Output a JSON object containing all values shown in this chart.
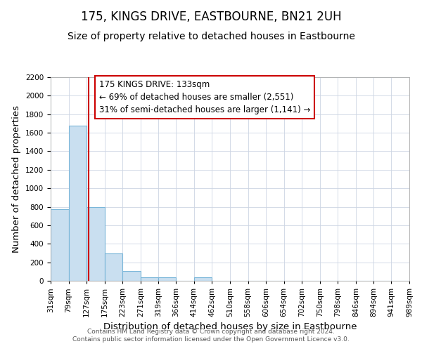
{
  "title": "175, KINGS DRIVE, EASTBOURNE, BN21 2UH",
  "subtitle": "Size of property relative to detached houses in Eastbourne",
  "xlabel": "Distribution of detached houses by size in Eastbourne",
  "ylabel": "Number of detached properties",
  "footer_line1": "Contains HM Land Registry data © Crown copyright and database right 2024.",
  "footer_line2": "Contains public sector information licensed under the Open Government Licence v3.0.",
  "bin_labels": [
    "31sqm",
    "79sqm",
    "127sqm",
    "175sqm",
    "223sqm",
    "271sqm",
    "319sqm",
    "366sqm",
    "414sqm",
    "462sqm",
    "510sqm",
    "558sqm",
    "606sqm",
    "654sqm",
    "702sqm",
    "750sqm",
    "798sqm",
    "846sqm",
    "894sqm",
    "941sqm",
    "989sqm"
  ],
  "bin_edges": [
    31,
    79,
    127,
    175,
    223,
    271,
    319,
    366,
    414,
    462,
    510,
    558,
    606,
    654,
    702,
    750,
    798,
    846,
    894,
    941,
    989
  ],
  "bar_values": [
    775,
    1675,
    800,
    295,
    110,
    35,
    35,
    0,
    35,
    0,
    0,
    0,
    0,
    0,
    0,
    0,
    0,
    0,
    0,
    0
  ],
  "bar_color": "#c9dff0",
  "bar_edge_color": "#7ab6d9",
  "ylim": [
    0,
    2200
  ],
  "yticks": [
    0,
    200,
    400,
    600,
    800,
    1000,
    1200,
    1400,
    1600,
    1800,
    2000,
    2200
  ],
  "vline_x": 133,
  "vline_color": "#cc0000",
  "annotation_title": "175 KINGS DRIVE: 133sqm",
  "annotation_line2": "← 69% of detached houses are smaller (2,551)",
  "annotation_line3": "31% of semi-detached houses are larger (1,141) →",
  "annotation_box_facecolor": "#ffffff",
  "annotation_box_edgecolor": "#cc0000",
  "title_fontsize": 12,
  "subtitle_fontsize": 10,
  "axis_label_fontsize": 9.5,
  "tick_fontsize": 7.5,
  "annotation_fontsize": 8.5,
  "bg_color": "#ffffff",
  "grid_color": "#ccd5e3",
  "footer_fontsize": 6.5,
  "footer_color": "#555555"
}
